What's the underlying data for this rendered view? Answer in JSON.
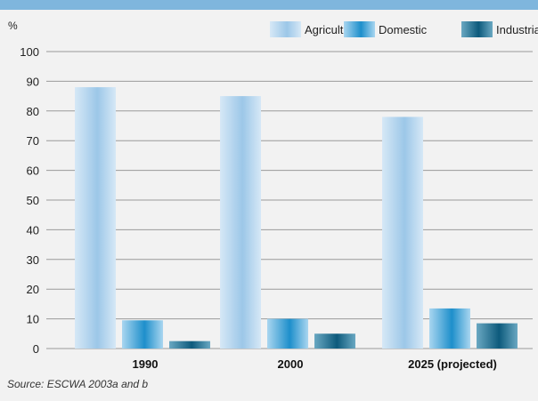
{
  "chart_data": {
    "type": "bar",
    "unit_label": "%",
    "categories": [
      "1990",
      "2000",
      "2025 (projected)"
    ],
    "series": [
      {
        "name": "Agriculture",
        "values": [
          88,
          85,
          78
        ]
      },
      {
        "name": "Domestic",
        "values": [
          9.5,
          10,
          13.5
        ]
      },
      {
        "name": "Industrial",
        "values": [
          2.5,
          5,
          8.5
        ]
      }
    ],
    "ylim": [
      0,
      100
    ],
    "yticks": [
      0,
      10,
      20,
      30,
      40,
      50,
      60,
      70,
      80,
      90,
      100
    ],
    "grid": true,
    "legend_position": "top-right"
  },
  "colors": {
    "Agriculture": [
      "#d6e8f6",
      "#9cc7e8",
      "#d6e8f6"
    ],
    "Domestic": [
      "#a9d6f0",
      "#1e8fcb",
      "#a9d6f0"
    ],
    "Industrial": [
      "#6aa8c2",
      "#0d5a7c",
      "#6aa8c2"
    ],
    "band": "#7fb6dd",
    "grid": "#9a9a9a"
  },
  "source": "Source: ESCWA 2003a and b"
}
